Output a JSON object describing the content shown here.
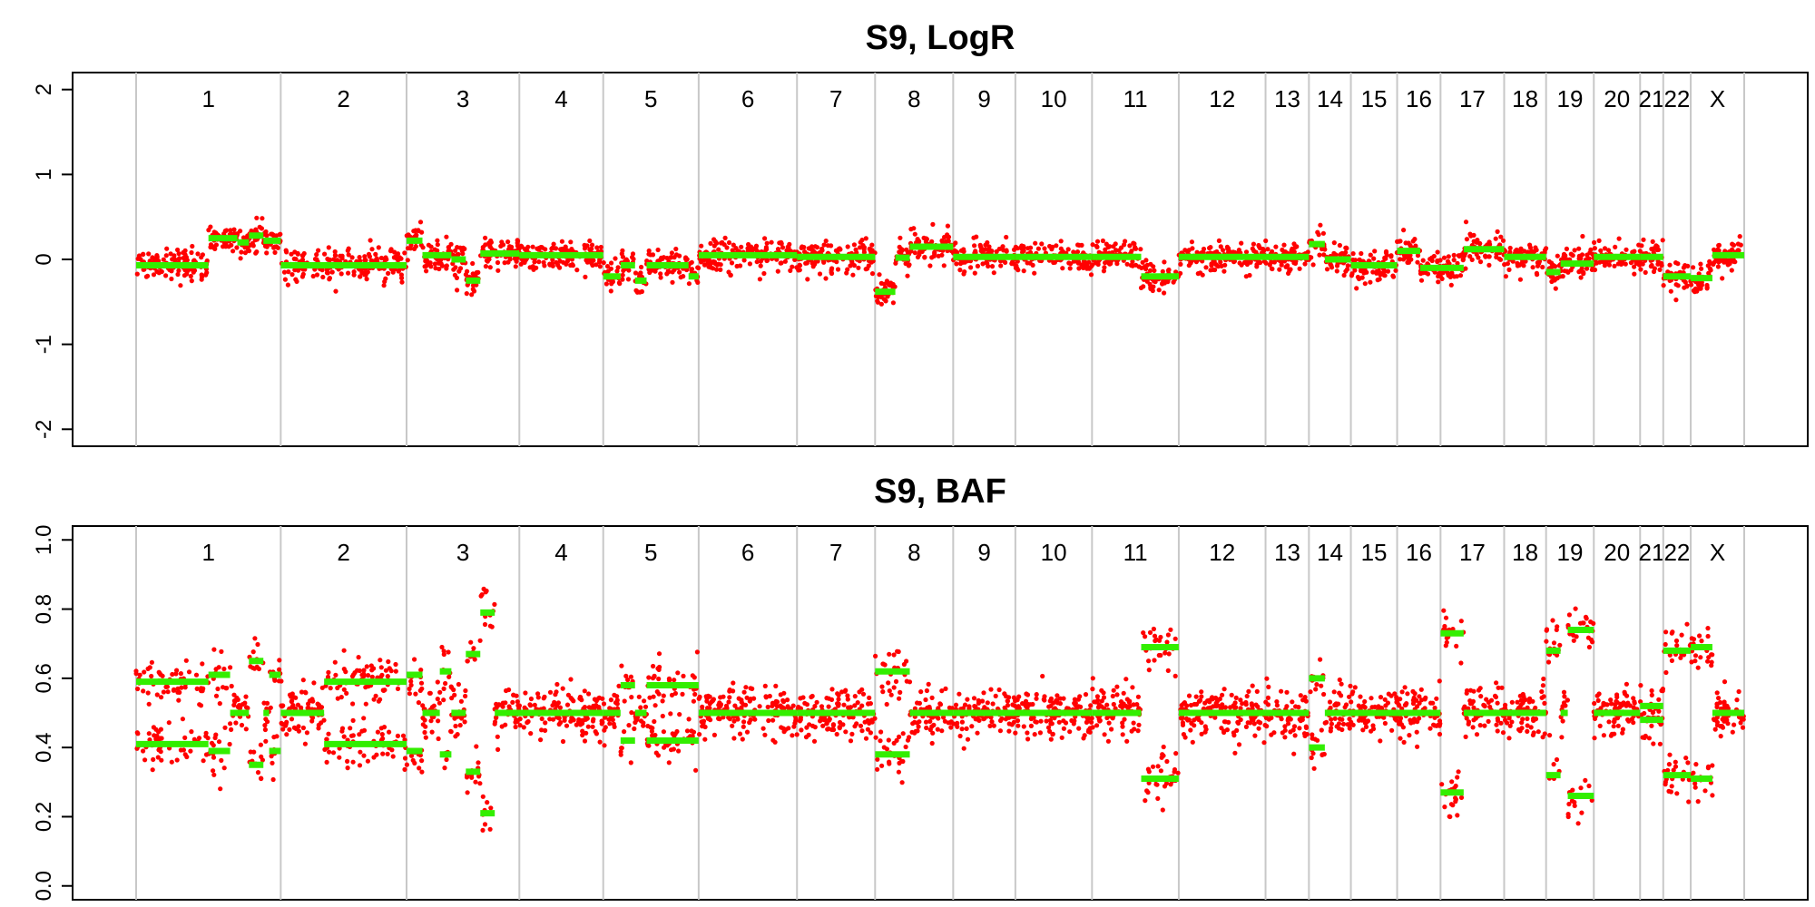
{
  "chart_data": [
    {
      "type": "scatter",
      "title": "S9, LogR",
      "ylim": [
        -2.2,
        2.2
      ],
      "yticks": [
        -2,
        -1,
        0,
        1,
        2
      ],
      "ytick_labels": [
        "-2",
        "-1",
        "0",
        "1",
        "2"
      ],
      "grid": false,
      "point_color": "#ff0000",
      "segment_color": "#33ee00",
      "chromosomes": [
        {
          "label": "1",
          "start": 0,
          "end": 1
        },
        {
          "label": "2",
          "start": 1,
          "end": 1.87
        },
        {
          "label": "3",
          "start": 1.87,
          "end": 2.65
        },
        {
          "label": "4",
          "start": 2.65,
          "end": 3.23
        },
        {
          "label": "5",
          "start": 3.23,
          "end": 3.89
        },
        {
          "label": "6",
          "start": 3.89,
          "end": 4.57
        },
        {
          "label": "7",
          "start": 4.57,
          "end": 5.11
        },
        {
          "label": "8",
          "start": 5.11,
          "end": 5.65
        },
        {
          "label": "9",
          "start": 5.65,
          "end": 6.08
        },
        {
          "label": "10",
          "start": 6.08,
          "end": 6.61
        },
        {
          "label": "11",
          "start": 6.61,
          "end": 7.21
        },
        {
          "label": "12",
          "start": 7.21,
          "end": 7.81
        },
        {
          "label": "13",
          "start": 7.81,
          "end": 8.11
        },
        {
          "label": "14",
          "start": 8.11,
          "end": 8.4
        },
        {
          "label": "15",
          "start": 8.4,
          "end": 8.72
        },
        {
          "label": "16",
          "start": 8.72,
          "end": 9.02
        },
        {
          "label": "17",
          "start": 9.02,
          "end": 9.46
        },
        {
          "label": "18",
          "start": 9.46,
          "end": 9.75
        },
        {
          "label": "19",
          "start": 9.75,
          "end": 10.08
        },
        {
          "label": "20",
          "start": 10.08,
          "end": 10.4
        },
        {
          "label": "21",
          "start": 10.4,
          "end": 10.56
        },
        {
          "label": "22",
          "start": 10.56,
          "end": 10.75
        },
        {
          "label": "X",
          "start": 10.75,
          "end": 11.12
        }
      ],
      "segments": [
        {
          "start": 0,
          "end": 0.5,
          "value": -0.07
        },
        {
          "start": 0.5,
          "end": 0.7,
          "value": 0.25
        },
        {
          "start": 0.7,
          "end": 0.78,
          "value": 0.2
        },
        {
          "start": 0.78,
          "end": 0.88,
          "value": 0.28
        },
        {
          "start": 0.88,
          "end": 1.0,
          "value": 0.22
        },
        {
          "start": 1.0,
          "end": 1.87,
          "value": -0.07
        },
        {
          "start": 1.87,
          "end": 1.98,
          "value": 0.22
        },
        {
          "start": 1.98,
          "end": 2.18,
          "value": 0.05
        },
        {
          "start": 2.18,
          "end": 2.28,
          "value": 0.0
        },
        {
          "start": 2.28,
          "end": 2.38,
          "value": -0.25
        },
        {
          "start": 2.38,
          "end": 2.65,
          "value": 0.07
        },
        {
          "start": 2.65,
          "end": 3.23,
          "value": 0.05
        },
        {
          "start": 3.23,
          "end": 3.35,
          "value": -0.2
        },
        {
          "start": 3.35,
          "end": 3.45,
          "value": -0.07
        },
        {
          "start": 3.45,
          "end": 3.53,
          "value": -0.25
        },
        {
          "start": 3.53,
          "end": 3.82,
          "value": -0.07
        },
        {
          "start": 3.82,
          "end": 3.89,
          "value": -0.2
        },
        {
          "start": 3.89,
          "end": 4.57,
          "value": 0.05
        },
        {
          "start": 4.57,
          "end": 5.11,
          "value": 0.03
        },
        {
          "start": 5.11,
          "end": 5.25,
          "value": -0.38
        },
        {
          "start": 5.25,
          "end": 5.35,
          "value": 0.02
        },
        {
          "start": 5.35,
          "end": 5.65,
          "value": 0.15
        },
        {
          "start": 5.65,
          "end": 6.08,
          "value": 0.03
        },
        {
          "start": 6.08,
          "end": 6.61,
          "value": 0.03
        },
        {
          "start": 6.61,
          "end": 6.95,
          "value": 0.03
        },
        {
          "start": 6.95,
          "end": 7.21,
          "value": -0.2
        },
        {
          "start": 7.21,
          "end": 7.81,
          "value": 0.03
        },
        {
          "start": 7.81,
          "end": 8.11,
          "value": 0.03
        },
        {
          "start": 8.11,
          "end": 8.22,
          "value": 0.18
        },
        {
          "start": 8.22,
          "end": 8.4,
          "value": 0.0
        },
        {
          "start": 8.4,
          "end": 8.72,
          "value": -0.07
        },
        {
          "start": 8.72,
          "end": 8.88,
          "value": 0.1
        },
        {
          "start": 8.88,
          "end": 9.02,
          "value": -0.1
        },
        {
          "start": 9.02,
          "end": 9.18,
          "value": -0.1
        },
        {
          "start": 9.18,
          "end": 9.46,
          "value": 0.12
        },
        {
          "start": 9.46,
          "end": 9.75,
          "value": 0.03
        },
        {
          "start": 9.75,
          "end": 9.85,
          "value": -0.15
        },
        {
          "start": 9.85,
          "end": 10.08,
          "value": -0.05
        },
        {
          "start": 10.08,
          "end": 10.4,
          "value": 0.03
        },
        {
          "start": 10.4,
          "end": 10.56,
          "value": 0.03
        },
        {
          "start": 10.56,
          "end": 10.75,
          "value": -0.2
        },
        {
          "start": 10.75,
          "end": 10.9,
          "value": -0.22
        },
        {
          "start": 10.9,
          "end": 11.12,
          "value": 0.05
        }
      ]
    },
    {
      "type": "scatter",
      "title": "S9, BAF",
      "ylim": [
        -0.04,
        1.04
      ],
      "yticks": [
        0.0,
        0.2,
        0.4,
        0.6,
        0.8,
        1.0
      ],
      "ytick_labels": [
        "0.0",
        "0.2",
        "0.4",
        "0.6",
        "0.8",
        "1.0"
      ],
      "grid": false,
      "point_color": "#ff0000",
      "segment_color": "#33ee00",
      "chromosomes_ref": 0,
      "segments": [
        {
          "start": 0,
          "end": 0.5,
          "values": [
            0.41,
            0.59
          ]
        },
        {
          "start": 0.5,
          "end": 0.65,
          "values": [
            0.39,
            0.61
          ]
        },
        {
          "start": 0.65,
          "end": 0.78,
          "values": [
            0.5
          ]
        },
        {
          "start": 0.78,
          "end": 0.88,
          "values": [
            0.35,
            0.65
          ]
        },
        {
          "start": 0.88,
          "end": 0.92,
          "values": [
            0.5
          ]
        },
        {
          "start": 0.92,
          "end": 1.0,
          "values": [
            0.39,
            0.61
          ]
        },
        {
          "start": 1.0,
          "end": 1.3,
          "values": [
            0.5
          ]
        },
        {
          "start": 1.3,
          "end": 1.87,
          "values": [
            0.41,
            0.59
          ]
        },
        {
          "start": 1.87,
          "end": 1.98,
          "values": [
            0.39,
            0.61
          ]
        },
        {
          "start": 1.98,
          "end": 2.1,
          "values": [
            0.5
          ]
        },
        {
          "start": 2.1,
          "end": 2.18,
          "values": [
            0.38,
            0.62
          ]
        },
        {
          "start": 2.18,
          "end": 2.28,
          "values": [
            0.5
          ]
        },
        {
          "start": 2.28,
          "end": 2.38,
          "values": [
            0.33,
            0.67
          ]
        },
        {
          "start": 2.38,
          "end": 2.48,
          "values": [
            0.21,
            0.79
          ]
        },
        {
          "start": 2.48,
          "end": 3.23,
          "values": [
            0.5
          ]
        },
        {
          "start": 3.23,
          "end": 3.35,
          "values": [
            0.5
          ]
        },
        {
          "start": 3.35,
          "end": 3.45,
          "values": [
            0.42,
            0.58
          ]
        },
        {
          "start": 3.45,
          "end": 3.53,
          "values": [
            0.5
          ]
        },
        {
          "start": 3.53,
          "end": 3.89,
          "values": [
            0.42,
            0.58
          ]
        },
        {
          "start": 3.89,
          "end": 4.57,
          "values": [
            0.5
          ]
        },
        {
          "start": 4.57,
          "end": 5.11,
          "values": [
            0.5
          ]
        },
        {
          "start": 5.11,
          "end": 5.35,
          "values": [
            0.38,
            0.62
          ]
        },
        {
          "start": 5.35,
          "end": 5.65,
          "values": [
            0.5
          ]
        },
        {
          "start": 5.65,
          "end": 6.08,
          "values": [
            0.5
          ]
        },
        {
          "start": 6.08,
          "end": 6.61,
          "values": [
            0.5
          ]
        },
        {
          "start": 6.61,
          "end": 6.95,
          "values": [
            0.5
          ]
        },
        {
          "start": 6.95,
          "end": 7.21,
          "values": [
            0.31,
            0.69
          ]
        },
        {
          "start": 7.21,
          "end": 7.81,
          "values": [
            0.5
          ]
        },
        {
          "start": 7.81,
          "end": 8.11,
          "values": [
            0.5
          ]
        },
        {
          "start": 8.11,
          "end": 8.22,
          "values": [
            0.4,
            0.6
          ]
        },
        {
          "start": 8.22,
          "end": 8.4,
          "values": [
            0.5
          ]
        },
        {
          "start": 8.4,
          "end": 8.72,
          "values": [
            0.5
          ]
        },
        {
          "start": 8.72,
          "end": 9.02,
          "values": [
            0.5
          ]
        },
        {
          "start": 9.02,
          "end": 9.18,
          "values": [
            0.27,
            0.73
          ]
        },
        {
          "start": 9.18,
          "end": 9.46,
          "values": [
            0.5
          ]
        },
        {
          "start": 9.46,
          "end": 9.75,
          "values": [
            0.5
          ]
        },
        {
          "start": 9.75,
          "end": 9.85,
          "values": [
            0.32,
            0.68
          ]
        },
        {
          "start": 9.85,
          "end": 9.9,
          "values": [
            0.5
          ]
        },
        {
          "start": 9.9,
          "end": 10.08,
          "values": [
            0.26,
            0.74
          ]
        },
        {
          "start": 10.08,
          "end": 10.4,
          "values": [
            0.5
          ]
        },
        {
          "start": 10.4,
          "end": 10.56,
          "values": [
            0.48,
            0.52
          ]
        },
        {
          "start": 10.56,
          "end": 10.75,
          "values": [
            0.32,
            0.68
          ]
        },
        {
          "start": 10.75,
          "end": 10.9,
          "values": [
            0.31,
            0.69
          ]
        },
        {
          "start": 10.9,
          "end": 11.12,
          "values": [
            0.5
          ]
        }
      ]
    }
  ]
}
